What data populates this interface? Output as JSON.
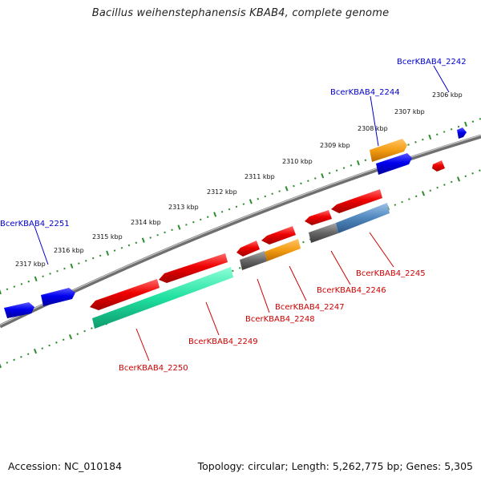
{
  "title": "Bacillus weihenstephanensis KBAB4, complete genome",
  "footer": {
    "accession": "Accession: NC_010184",
    "stats": "Topology: circular; Length: 5,262,775 bp; Genes: 5,305"
  },
  "scale_labels": [
    "2306 kbp",
    "2307 kbp",
    "2308 kbp",
    "2309 kbp",
    "2310 kbp",
    "2311 kbp",
    "2312 kbp",
    "2313 kbp",
    "2314 kbp",
    "2315 kbp",
    "2316 kbp",
    "2317 kbp"
  ],
  "genes": {
    "forward": [
      "BcerKBAB4_2242",
      "BcerKBAB4_2244",
      "BcerKBAB4_2251"
    ],
    "reverse": [
      "BcerKBAB4_2245",
      "BcerKBAB4_2246",
      "BcerKBAB4_2247",
      "BcerKBAB4_2248",
      "BcerKBAB4_2249",
      "BcerKBAB4_2250"
    ]
  },
  "colors": {
    "backbone": "#7a7a7a",
    "tick": "#2e8b2e",
    "forward_gene": "#0000ee",
    "forward_label": "#0000cc",
    "reverse_gene": "#ee0000",
    "reverse_label": "#cc0000",
    "orange_gene": "#f39c12",
    "gray_gene": "#666666",
    "teal_gene": "#1fe0a0",
    "steel_gene": "#4f86bd"
  }
}
